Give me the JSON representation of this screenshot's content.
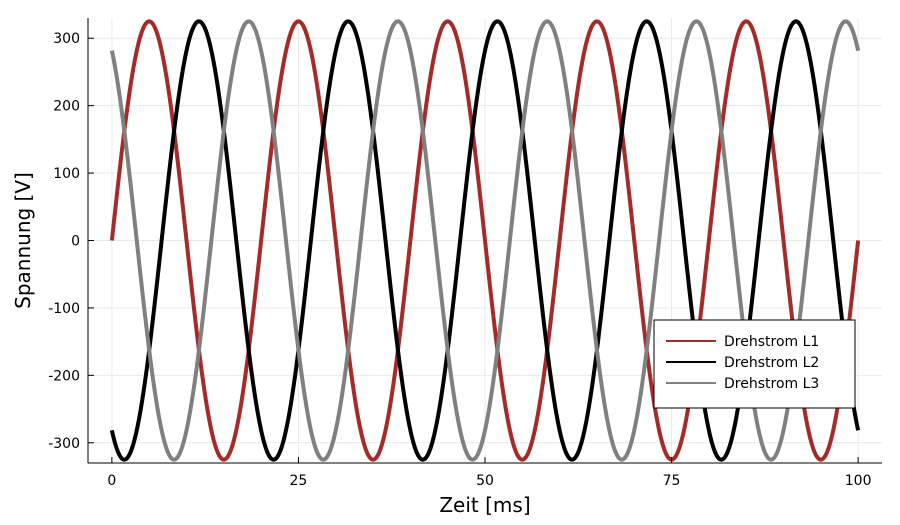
{
  "chart_data": {
    "type": "line",
    "title": "",
    "xlabel": "Zeit [ms]",
    "ylabel": "Spannung [V]",
    "xlim": [
      0,
      100
    ],
    "ylim": [
      -325,
      325
    ],
    "xticks": [
      0,
      25,
      50,
      75,
      100
    ],
    "xtick_labels": [
      "0",
      "25",
      "50",
      "75",
      "100"
    ],
    "yticks": [
      -300,
      -200,
      -100,
      0,
      100,
      200,
      300
    ],
    "ytick_labels": [
      "-300",
      "-200",
      "-100",
      "0",
      "100",
      "200",
      "300"
    ],
    "grid": true,
    "legend_position": "bottom-right",
    "amplitude": 325,
    "frequency_hz": 50,
    "series": [
      {
        "name": "Drehstrom L1",
        "color": "#a52a2a",
        "phase_deg": 0
      },
      {
        "name": "Drehstrom L2",
        "color": "#000000",
        "phase_deg": 120
      },
      {
        "name": "Drehstrom L3",
        "color": "#808080",
        "phase_deg": 240
      }
    ]
  }
}
